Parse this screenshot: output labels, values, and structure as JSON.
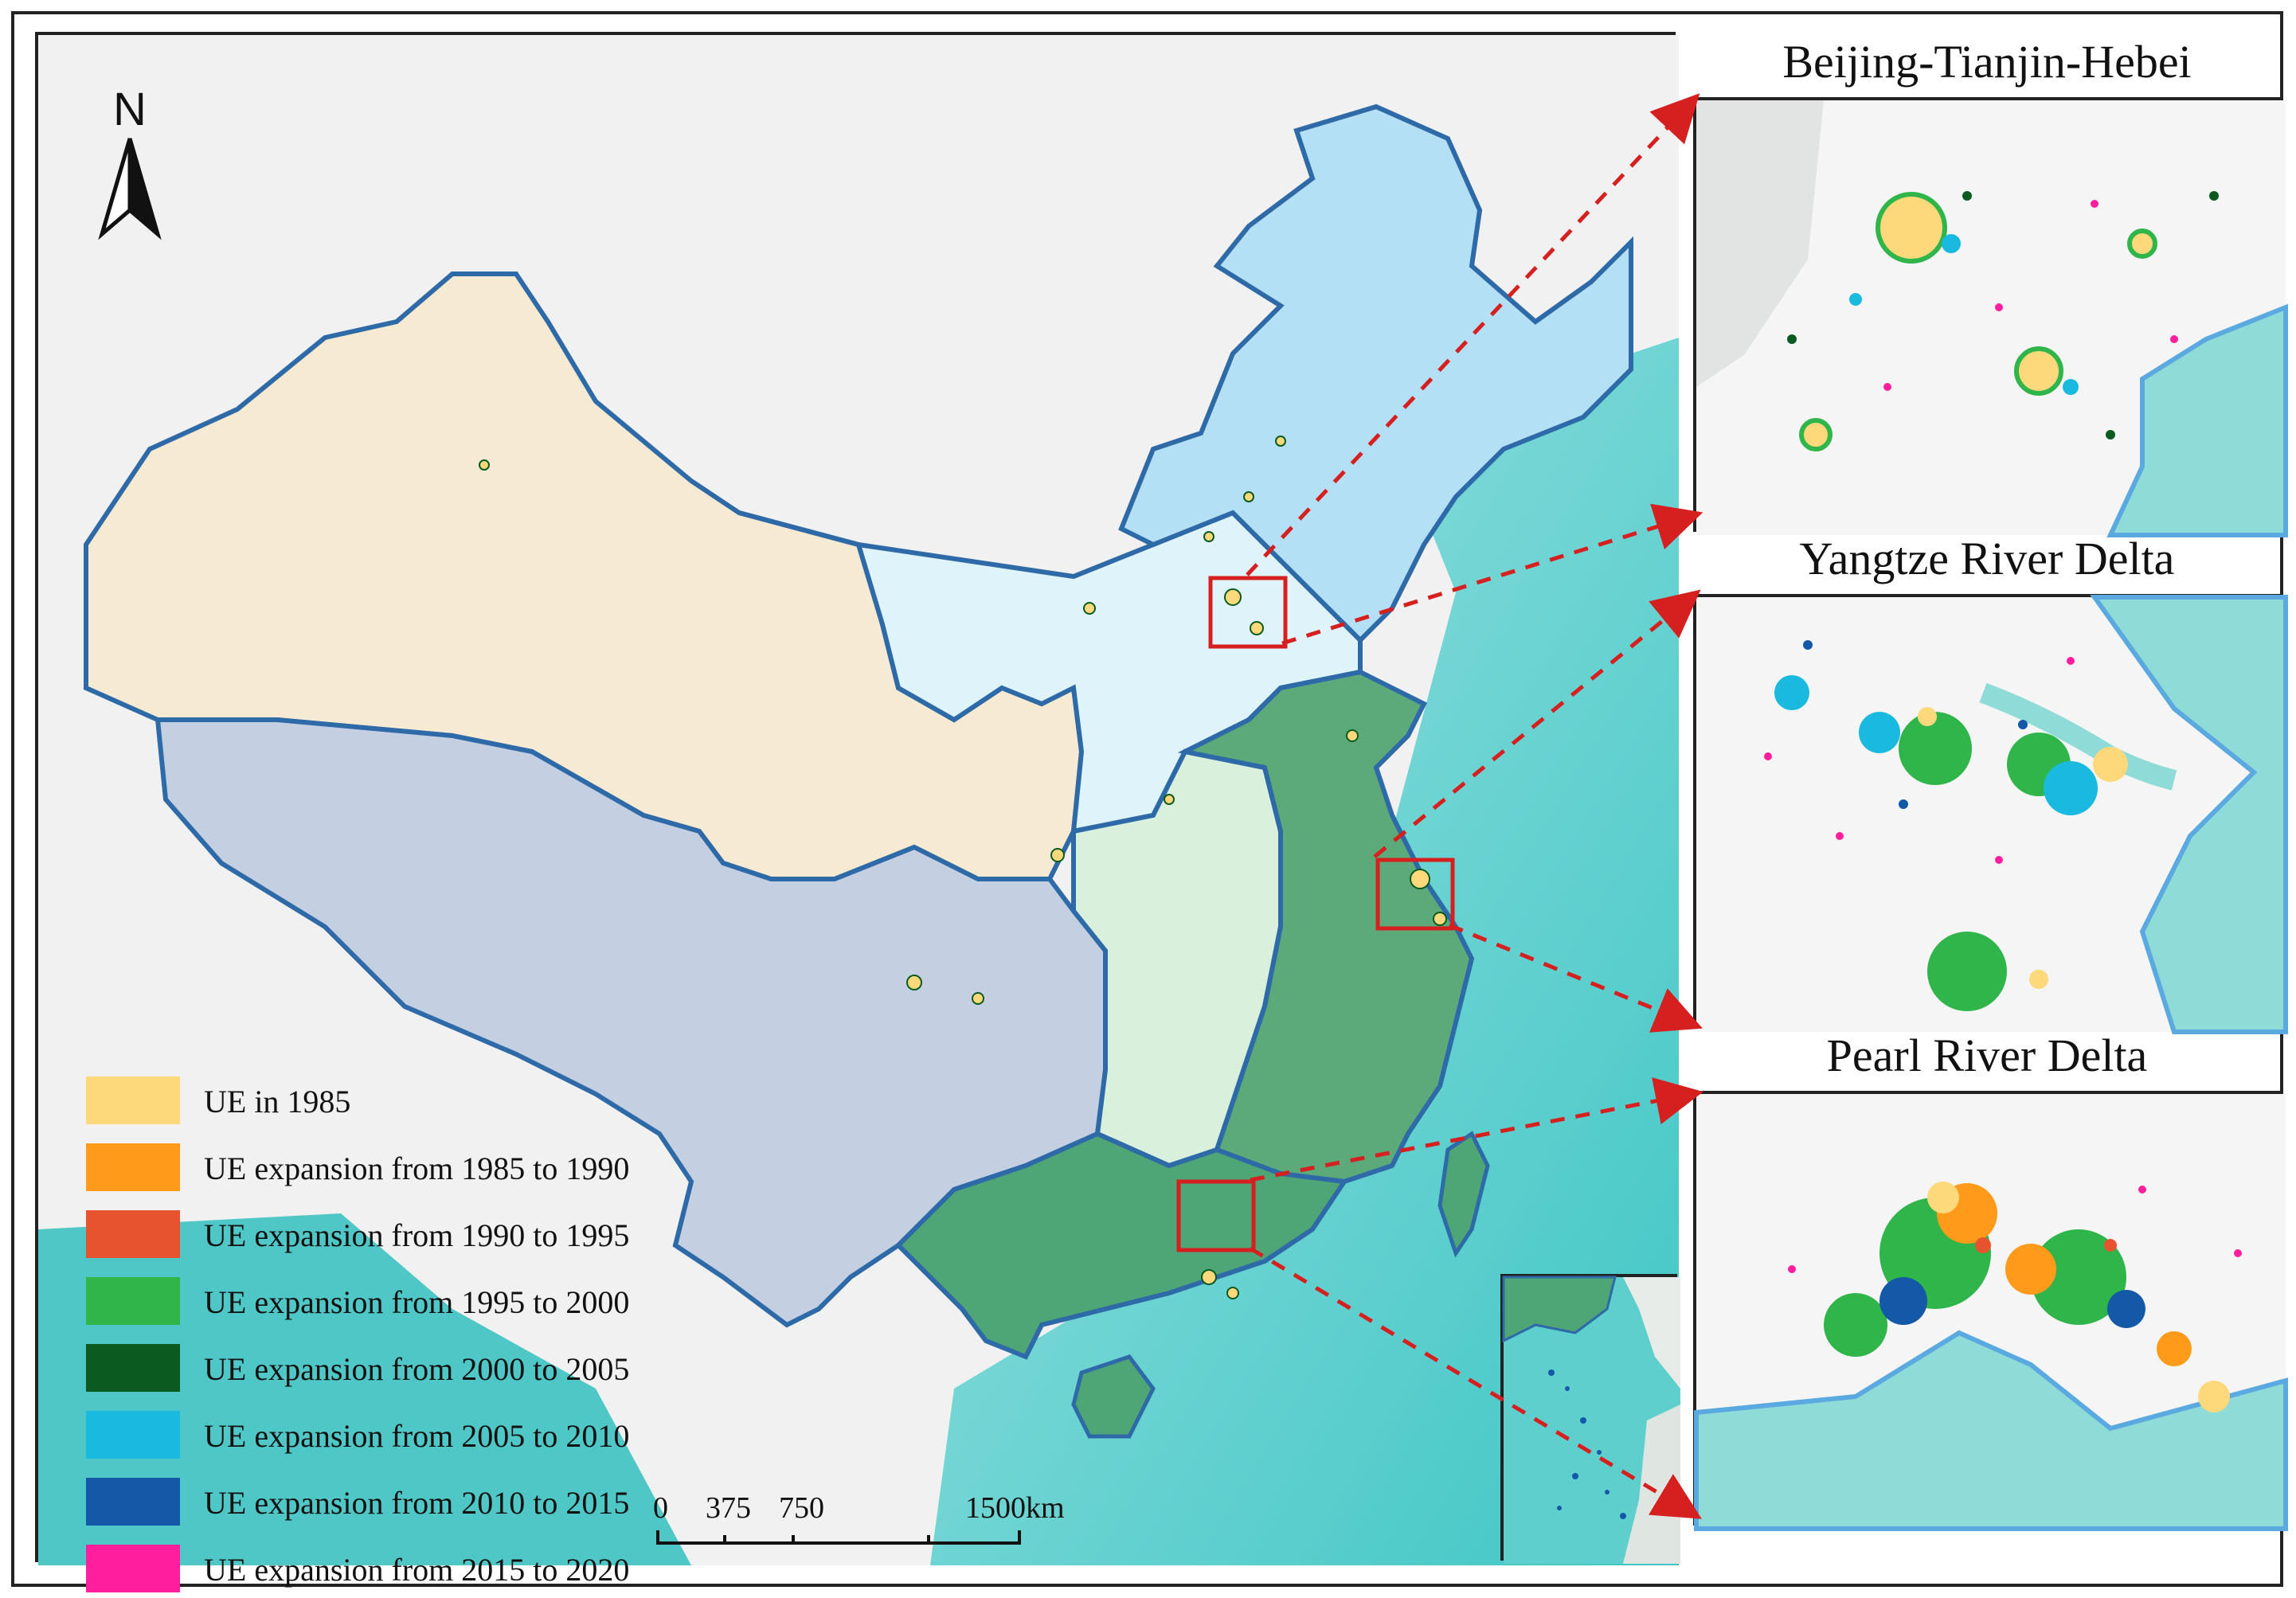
{
  "north_arrow": {
    "label": "N"
  },
  "legend": {
    "items": [
      {
        "label": "UE in 1985",
        "color": "#fdd97c"
      },
      {
        "label": "UE expansion from 1985 to 1990",
        "color": "#ff9a1a"
      },
      {
        "label": "UE expansion from 1990 to 1995",
        "color": "#e8532f"
      },
      {
        "label": "UE expansion from 1995 to 2000",
        "color": "#2fb54a"
      },
      {
        "label": "UE expansion from 2000 to 2005",
        "color": "#0b5a20"
      },
      {
        "label": "UE expansion from 2005 to 2010",
        "color": "#1ab9df"
      },
      {
        "label": "UE expansion from 2010 to 2015",
        "color": "#1459a8"
      },
      {
        "label": "UE expansion from 2015 to 2020",
        "color": "#ff1f9e"
      }
    ]
  },
  "scale_bar": {
    "ticks": [
      "0",
      "375",
      "750",
      "1500km"
    ]
  },
  "panels": {
    "bth": {
      "title": "Beijing-Tianjin-Hebei"
    },
    "yrd": {
      "title": "Yangtze River Delta"
    },
    "prd": {
      "title": "Pearl River Delta"
    }
  },
  "colors": {
    "northwest": "#f6ead2",
    "northeast": "#b3e0f5",
    "north": "#def3fa",
    "southwest": "#c4d0e2",
    "central": "#d8f0dc",
    "east": "#5caa7a",
    "south": "#4ea575",
    "sea": "#5cccc9",
    "boundary": "#2f6aa8",
    "highlight_box": "#d62020"
  }
}
